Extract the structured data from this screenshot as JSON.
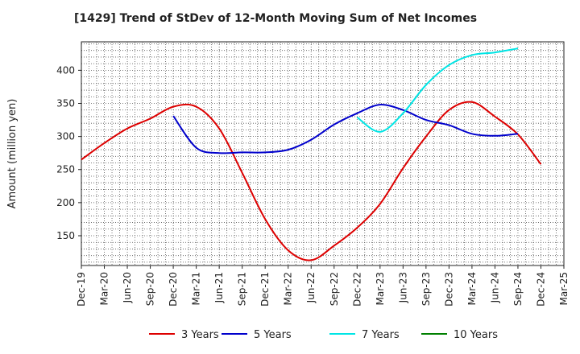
{
  "chart_data": {
    "type": "line",
    "title": "[1429]  Trend of StDev of 12-Month Moving Sum of Net Incomes",
    "xlabel": "",
    "ylabel": "Amount (million yen)",
    "x": [
      "Dec-19",
      "Mar-20",
      "Jun-20",
      "Sep-20",
      "Dec-20",
      "Mar-21",
      "Jun-21",
      "Sep-21",
      "Dec-21",
      "Mar-22",
      "Jun-22",
      "Sep-22",
      "Dec-22",
      "Mar-23",
      "Jun-23",
      "Sep-23",
      "Dec-23",
      "Mar-24",
      "Jun-24",
      "Sep-24",
      "Dec-24",
      "Mar-25"
    ],
    "ylim": [
      105,
      443
    ],
    "yticks": [
      150,
      200,
      250,
      300,
      350,
      400
    ],
    "grid": true,
    "legend_position": "bottom",
    "series": [
      {
        "name": "3 Years",
        "color": "#dd0000",
        "values": [
          265,
          290,
          312,
          327,
          345,
          345,
          312,
          245,
          175,
          128,
          113,
          135,
          162,
          198,
          252,
          300,
          340,
          352,
          330,
          303,
          258,
          null
        ]
      },
      {
        "name": "5 Years",
        "color": "#0000cc",
        "values": [
          null,
          null,
          null,
          null,
          331,
          283,
          275,
          276,
          276,
          280,
          295,
          318,
          335,
          348,
          340,
          325,
          317,
          304,
          301,
          304,
          null,
          null
        ]
      },
      {
        "name": "7 Years",
        "color": "#00e5e5",
        "values": [
          null,
          null,
          null,
          null,
          null,
          null,
          null,
          null,
          null,
          null,
          null,
          null,
          329,
          307,
          335,
          378,
          408,
          423,
          427,
          433,
          null,
          null
        ]
      },
      {
        "name": "10 Years",
        "color": "#008000",
        "values": [
          null,
          null,
          null,
          null,
          null,
          null,
          null,
          null,
          null,
          null,
          null,
          null,
          null,
          null,
          null,
          null,
          null,
          null,
          null,
          null,
          null,
          null
        ]
      }
    ]
  }
}
